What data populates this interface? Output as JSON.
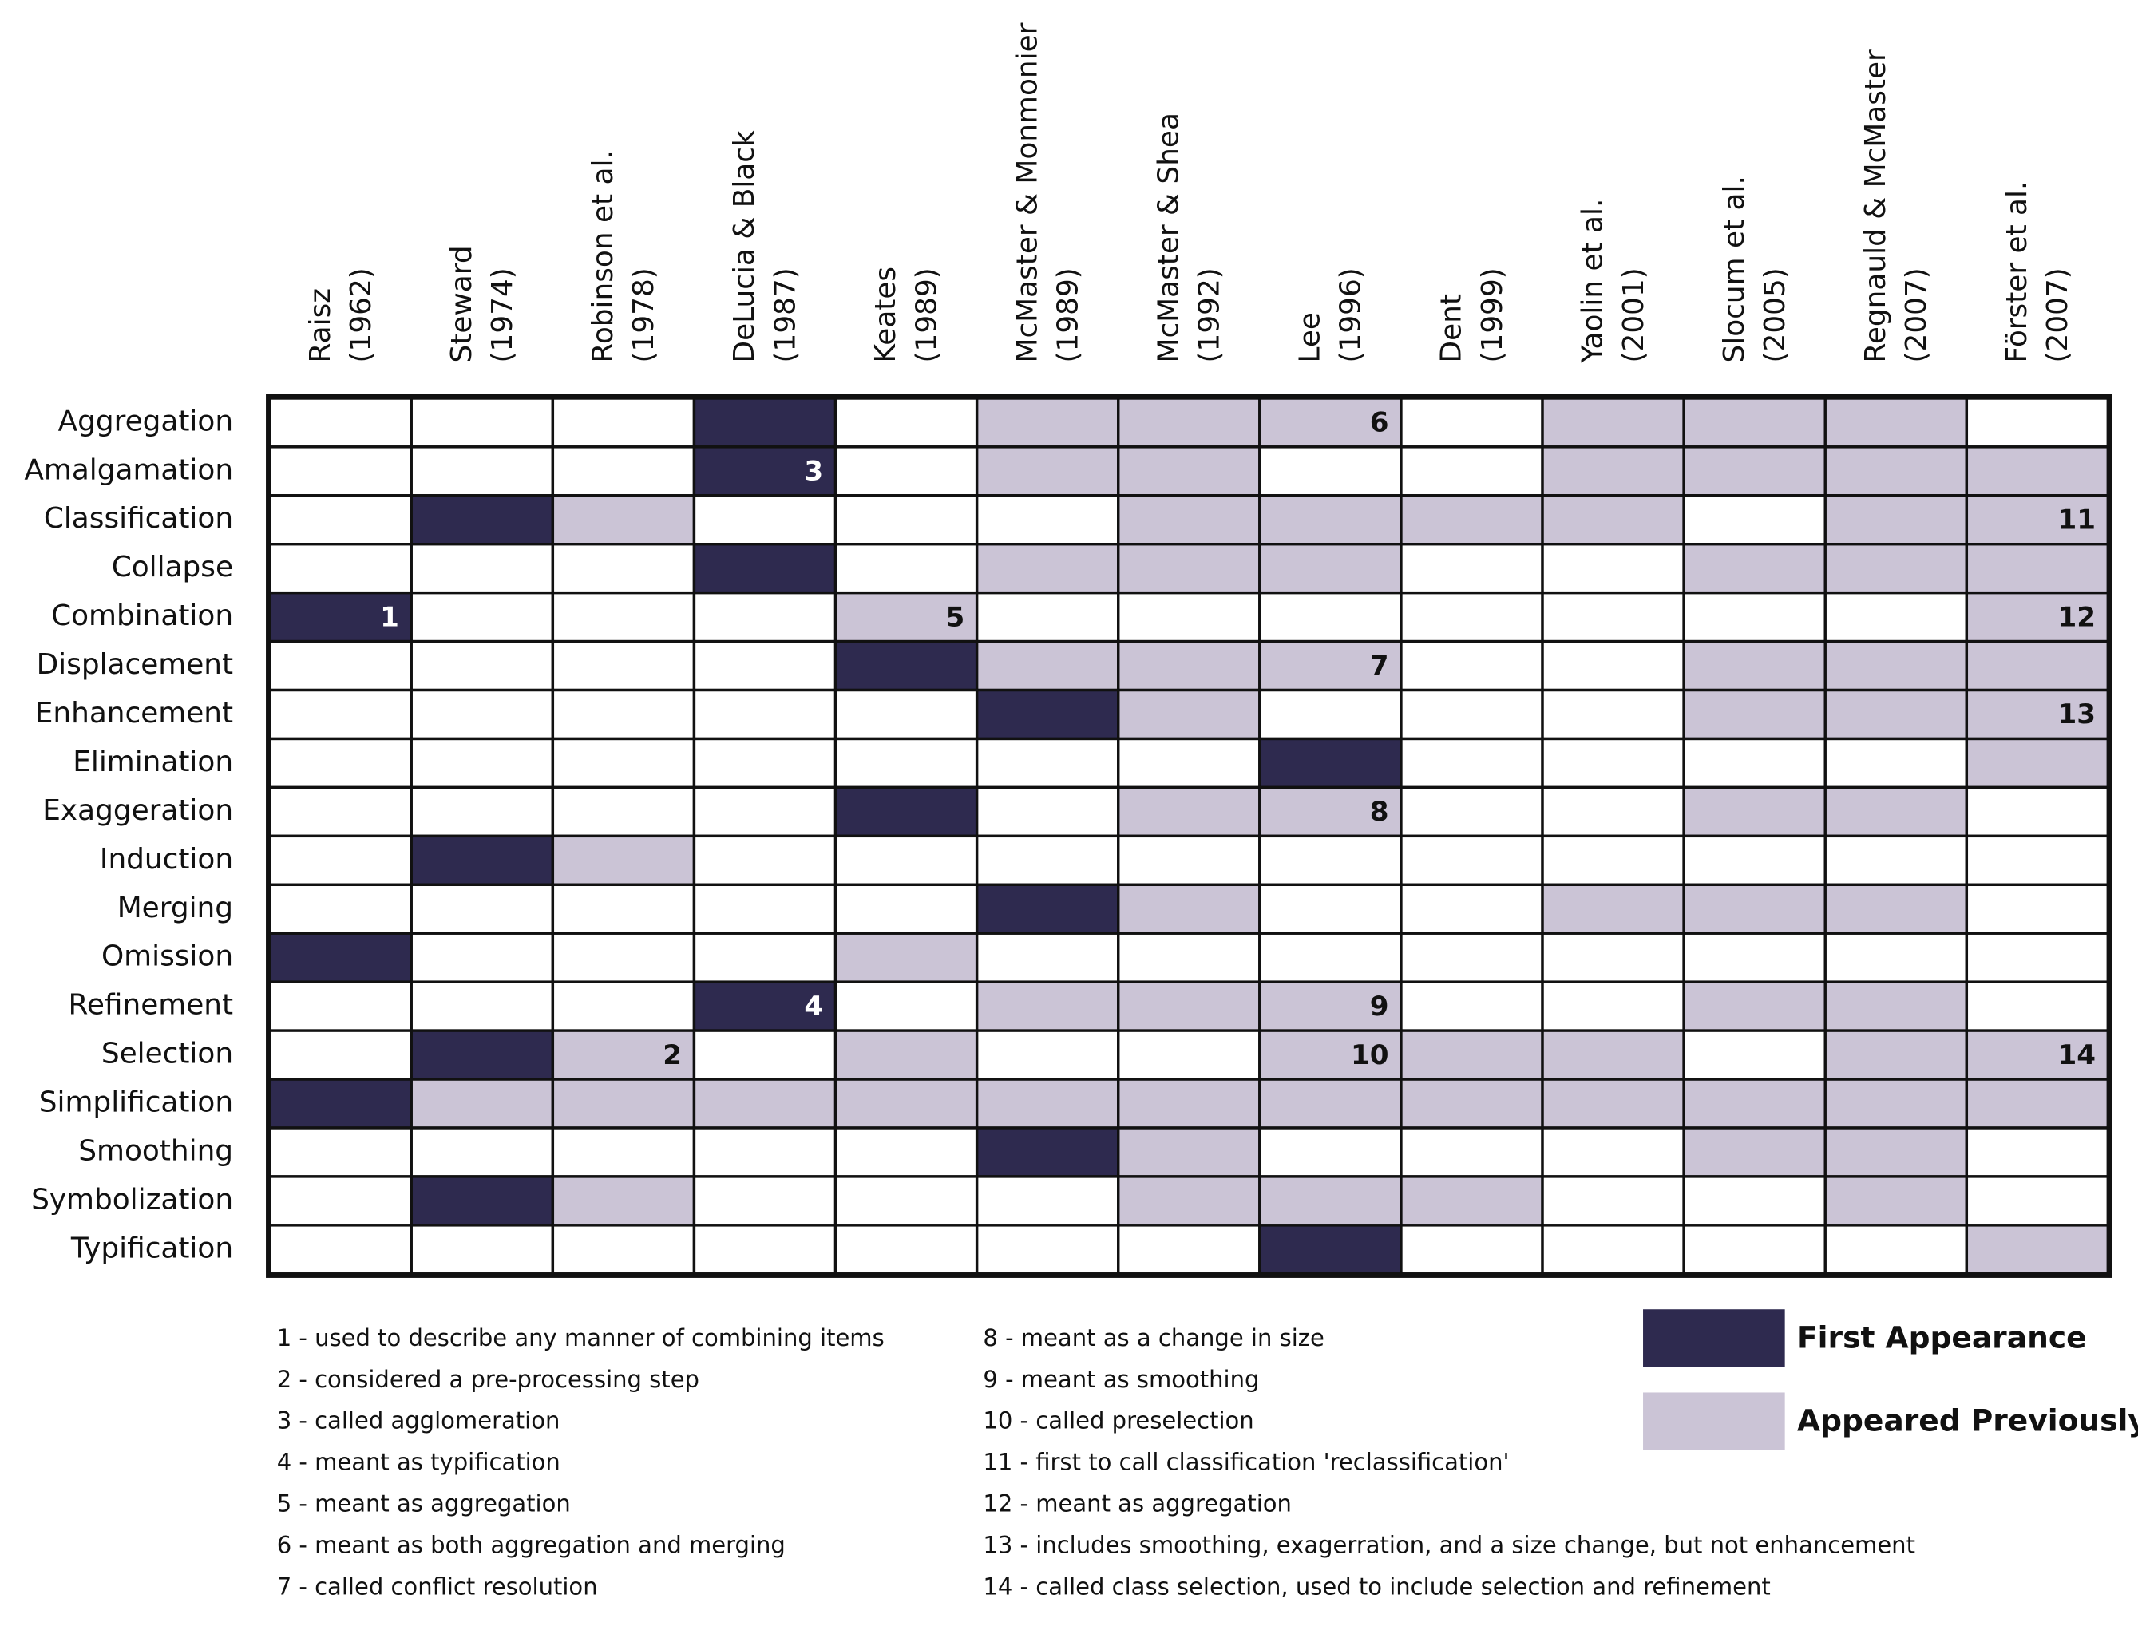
{
  "table": {
    "columns": [
      {
        "author": "Raisz",
        "year": "(1962)"
      },
      {
        "author": "Steward",
        "year": "(1974)"
      },
      {
        "author": "Robinson et al.",
        "year": "(1978)"
      },
      {
        "author": "DeLucia & Black",
        "year": "(1987)"
      },
      {
        "author": "Keates",
        "year": "(1989)"
      },
      {
        "author": "McMaster & Monmonier",
        "year": "(1989)"
      },
      {
        "author": "McMaster & Shea",
        "year": "(1992)"
      },
      {
        "author": "Lee",
        "year": "(1996)"
      },
      {
        "author": "Dent",
        "year": "(1999)"
      },
      {
        "author": "Yaolin et al.",
        "year": "(2001)"
      },
      {
        "author": "Slocum et al.",
        "year": "(2005)"
      },
      {
        "author": "Regnauld & McMaster",
        "year": "(2007)"
      },
      {
        "author": "Förster et al.",
        "year": "(2007)"
      }
    ],
    "rows": [
      {
        "label": "Aggregation",
        "cells": [
          null,
          null,
          null,
          "first",
          null,
          "previous",
          "previous",
          {
            "state": "previous",
            "note": "6"
          },
          null,
          "previous",
          "previous",
          "previous",
          null
        ]
      },
      {
        "label": "Amalgamation",
        "cells": [
          null,
          null,
          null,
          {
            "state": "first",
            "note": "3"
          },
          null,
          "previous",
          "previous",
          null,
          null,
          "previous",
          "previous",
          "previous",
          "previous"
        ]
      },
      {
        "label": "Classification",
        "cells": [
          null,
          "first",
          "previous",
          null,
          null,
          null,
          "previous",
          "previous",
          "previous",
          "previous",
          null,
          "previous",
          {
            "state": "previous",
            "note": "11"
          }
        ]
      },
      {
        "label": "Collapse",
        "cells": [
          null,
          null,
          null,
          "first",
          null,
          "previous",
          "previous",
          "previous",
          null,
          null,
          "previous",
          "previous",
          "previous"
        ]
      },
      {
        "label": "Combination",
        "cells": [
          {
            "state": "first",
            "note": "1"
          },
          null,
          null,
          null,
          {
            "state": "previous",
            "note": "5"
          },
          null,
          null,
          null,
          null,
          null,
          null,
          null,
          {
            "state": "previous",
            "note": "12"
          }
        ]
      },
      {
        "label": "Displacement",
        "cells": [
          null,
          null,
          null,
          null,
          "first",
          "previous",
          "previous",
          {
            "state": "previous",
            "note": "7"
          },
          null,
          null,
          "previous",
          "previous",
          "previous"
        ]
      },
      {
        "label": "Enhancement",
        "cells": [
          null,
          null,
          null,
          null,
          null,
          "first",
          "previous",
          null,
          null,
          null,
          "previous",
          "previous",
          {
            "state": "previous",
            "note": "13"
          }
        ]
      },
      {
        "label": "Elimination",
        "cells": [
          null,
          null,
          null,
          null,
          null,
          null,
          null,
          "first",
          null,
          null,
          null,
          null,
          "previous"
        ]
      },
      {
        "label": "Exaggeration",
        "cells": [
          null,
          null,
          null,
          null,
          "first",
          null,
          "previous",
          {
            "state": "previous",
            "note": "8"
          },
          null,
          null,
          "previous",
          "previous",
          null
        ]
      },
      {
        "label": "Induction",
        "cells": [
          null,
          "first",
          "previous",
          null,
          null,
          null,
          null,
          null,
          null,
          null,
          null,
          null,
          null
        ]
      },
      {
        "label": "Merging",
        "cells": [
          null,
          null,
          null,
          null,
          null,
          "first",
          "previous",
          null,
          null,
          "previous",
          "previous",
          "previous",
          null
        ]
      },
      {
        "label": "Omission",
        "cells": [
          "first",
          null,
          null,
          null,
          "previous",
          null,
          null,
          null,
          null,
          null,
          null,
          null,
          null
        ]
      },
      {
        "label": "Refinement",
        "cells": [
          null,
          null,
          null,
          {
            "state": "first",
            "note": "4"
          },
          null,
          "previous",
          "previous",
          {
            "state": "previous",
            "note": "9"
          },
          null,
          null,
          "previous",
          "previous",
          null
        ]
      },
      {
        "label": "Selection",
        "cells": [
          null,
          "first",
          {
            "state": "previous",
            "note": "2"
          },
          null,
          "previous",
          null,
          null,
          {
            "state": "previous",
            "note": "10"
          },
          "previous",
          "previous",
          null,
          "previous",
          {
            "state": "previous",
            "note": "14"
          }
        ]
      },
      {
        "label": "Simplification",
        "cells": [
          "first",
          "previous",
          "previous",
          "previous",
          "previous",
          "previous",
          "previous",
          "previous",
          "previous",
          "previous",
          "previous",
          "previous",
          "previous"
        ]
      },
      {
        "label": "Smoothing",
        "cells": [
          null,
          null,
          null,
          null,
          null,
          "first",
          "previous",
          null,
          null,
          null,
          "previous",
          "previous",
          null
        ]
      },
      {
        "label": "Symbolization",
        "cells": [
          null,
          "first",
          "previous",
          null,
          null,
          null,
          "previous",
          "previous",
          "previous",
          null,
          null,
          "previous",
          null
        ]
      },
      {
        "label": "Typification",
        "cells": [
          null,
          null,
          null,
          null,
          null,
          null,
          null,
          "first",
          null,
          null,
          null,
          null,
          "previous"
        ]
      }
    ]
  },
  "legend": [
    {
      "state": "first",
      "label": "First Appearance",
      "color": "#2e2a4f"
    },
    {
      "state": "previous",
      "label": "Appeared Previously",
      "color": "#cbc4d6"
    }
  ],
  "notes": [
    "1 - used to describe any manner of combining items",
    "2 - considered a pre-processing step",
    "3 - called agglomeration",
    "4 - meant as typification",
    "5 - meant as aggregation",
    "6 - meant as both aggregation and merging",
    "7 - called conflict resolution",
    "8 - meant as a change in size",
    "9 - meant as smoothing",
    "10 - called preselection",
    "11 - first to call classification 'reclassification'",
    "12 - meant as aggregation",
    "13 - includes smoothing, exagerration, and a size change, but not enhancement",
    "14 - called class selection, used to include selection and refinement"
  ]
}
